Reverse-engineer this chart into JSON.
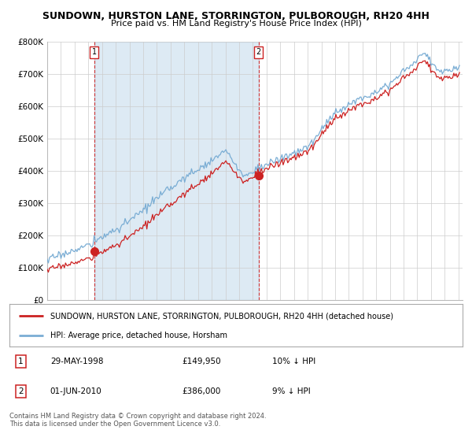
{
  "title": "SUNDOWN, HURSTON LANE, STORRINGTON, PULBOROUGH, RH20 4HH",
  "subtitle": "Price paid vs. HM Land Registry's House Price Index (HPI)",
  "legend_line1": "SUNDOWN, HURSTON LANE, STORRINGTON, PULBOROUGH, RH20 4HH (detached house)",
  "legend_line2": "HPI: Average price, detached house, Horsham",
  "ylim": [
    0,
    800000
  ],
  "yticks": [
    0,
    100000,
    200000,
    300000,
    400000,
    500000,
    600000,
    700000,
    800000
  ],
  "ytick_labels": [
    "£0",
    "£100K",
    "£200K",
    "£300K",
    "£400K",
    "£500K",
    "£600K",
    "£700K",
    "£800K"
  ],
  "hpi_color": "#7aadd4",
  "price_color": "#cc2222",
  "shade_color": "#ddeeff",
  "marker1_year": 1998.42,
  "marker1_price": 149950,
  "marker2_year": 2010.42,
  "marker2_price": 386000,
  "bg_color": "#ffffff",
  "grid_color": "#cccccc",
  "xlim_start": 1995,
  "xlim_end": 2025.3
}
